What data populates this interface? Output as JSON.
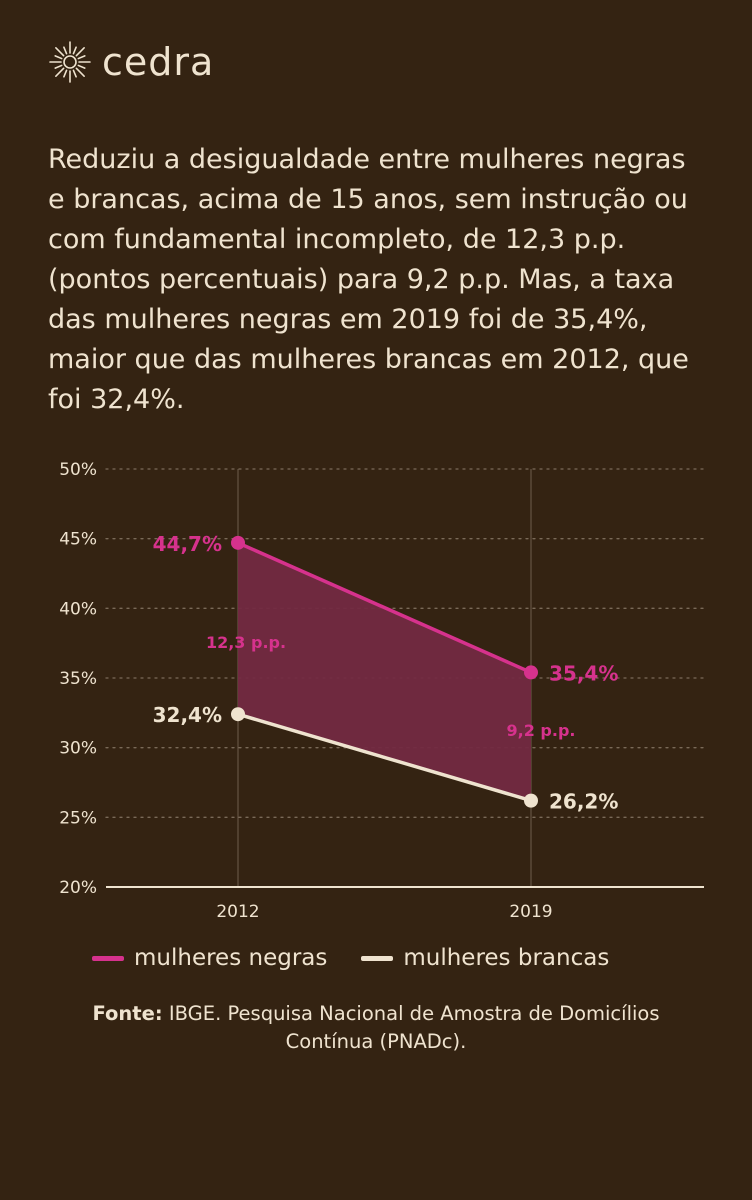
{
  "brand": {
    "name": "cedra",
    "logo_icon": "sun-burst-icon"
  },
  "headline": "Reduziu a desigualdade entre mulheres negras e brancas, acima de 15 anos, sem instrução ou com fundamental incompleto, de 12,3 p.p. (pontos percentuais) para 9,2 p.p. Mas, a taxa das mulheres negras em 2019 foi de 35,4%, maior que das mulheres brancas em 2012, que foi 32,4%.",
  "colors": {
    "background": "#342312",
    "text": "#efe3cf",
    "negras": "#d6328d",
    "brancas": "#efe3cf",
    "gap_fill": "#732a42",
    "grid": "#7a6a58"
  },
  "chart_data": {
    "type": "line",
    "x": [
      "2012",
      "2019"
    ],
    "ylim": [
      20,
      50
    ],
    "yticks": [
      20,
      25,
      30,
      35,
      40,
      45,
      50
    ],
    "ytick_labels": [
      "20%",
      "25%",
      "30%",
      "35%",
      "40%",
      "45%",
      "50%"
    ],
    "grid": "dotted horizontal",
    "series": [
      {
        "name": "mulheres negras",
        "values": [
          44.7,
          35.4
        ],
        "labels": [
          "44,7%",
          "35,4%"
        ]
      },
      {
        "name": "mulheres brancas",
        "values": [
          32.4,
          26.2
        ],
        "labels": [
          "32,4%",
          "26,2%"
        ]
      }
    ],
    "gap_labels": [
      "12,3 p.p.",
      "9,2 p.p."
    ],
    "legend": "bottom"
  },
  "legend": {
    "negras": "mulheres negras",
    "brancas": "mulheres brancas"
  },
  "source": {
    "label": "Fonte:",
    "text": "IBGE. Pesquisa Nacional de Amostra de Domicílios Contínua (PNADc)."
  }
}
